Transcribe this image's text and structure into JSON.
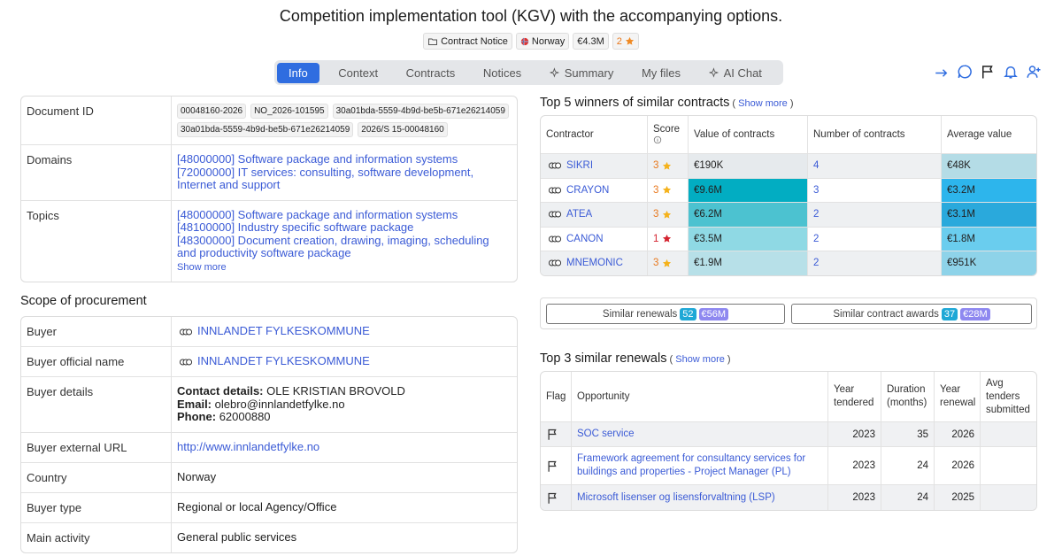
{
  "header": {
    "title": "Competition implementation tool (KGV) with the accompanying options.",
    "badges": {
      "notice_type": "Contract Notice",
      "country": "Norway",
      "value": "€4.3M",
      "rating": 2
    }
  },
  "tabs": {
    "items": [
      "Info",
      "Context",
      "Contracts",
      "Notices",
      "Summary",
      "My files",
      "AI Chat"
    ],
    "active": 0
  },
  "document": {
    "rows": [
      {
        "label": "Document ID",
        "chips": [
          "00048160-2026",
          "NO_2026-101595",
          "30a01bda-5559-4b9d-be5b-671e26214059",
          "30a01bda-5559-4b9d-be5b-671e26214059",
          "2026/S 15-00048160"
        ]
      },
      {
        "label": "Domains",
        "links": [
          "[48000000] Software package and information systems",
          "[72000000] IT services: consulting, software development, Internet and support"
        ]
      },
      {
        "label": "Topics",
        "links": [
          "[48000000] Software package and information systems",
          "[48100000] Industry specific software package",
          "[48300000] Document creation, drawing, imaging, scheduling and productivity software package"
        ],
        "more": "Show more"
      }
    ]
  },
  "scope": {
    "title": "Scope of procurement",
    "rows": [
      {
        "label": "Buyer",
        "link": "INNLANDET FYLKESKOMMUNE"
      },
      {
        "label": "Buyer official name",
        "link": "INNLANDET FYLKESKOMMUNE"
      },
      {
        "label": "Buyer details",
        "contact": [
          {
            "key": "Contact details:",
            "value": "OLE KRISTIAN BROVOLD"
          },
          {
            "key": "Email:",
            "value": "olebro@innlandetfylke.no"
          },
          {
            "key": "Phone:",
            "value": "62000880"
          }
        ]
      },
      {
        "label": "Buyer external URL",
        "url": "http://www.innlandetfylke.no"
      },
      {
        "label": "Country",
        "text": "Norway"
      },
      {
        "label": "Buyer type",
        "text": "Regional or local Agency/Office"
      },
      {
        "label": "Main activity",
        "text": "General public services"
      }
    ]
  },
  "winners": {
    "title": "Top 5 winners of similar contracts",
    "more": "Show more",
    "columns": [
      "Contractor",
      "Score",
      "Value of contracts",
      "Number of contracts",
      "Average value"
    ],
    "rows": [
      {
        "contractor": "SIKRI",
        "score": 3,
        "value": "€190K",
        "count": 4,
        "average": "€48K",
        "value_color": "#e6eaed",
        "average_color": "#b4dce6"
      },
      {
        "contractor": "CRAYON",
        "score": 3,
        "value": "€9.6M",
        "count": 3,
        "average": "€3.2M",
        "value_color": "#02adc2",
        "average_color": "#2db5ec"
      },
      {
        "contractor": "ATEA",
        "score": 3,
        "value": "€6.2M",
        "count": 2,
        "average": "€3.1M",
        "value_color": "#4cc2d0",
        "average_color": "#2aa9dc"
      },
      {
        "contractor": "CANON",
        "score": 1,
        "value": "€3.5M",
        "count": 2,
        "average": "€1.8M",
        "value_color": "#8fd9e4",
        "average_color": "#6acdee"
      },
      {
        "contractor": "MNEMONIC",
        "score": 3,
        "value": "€1.9M",
        "count": 2,
        "average": "€951K",
        "value_color": "#b7e0e8",
        "average_color": "#8ed3e9"
      }
    ]
  },
  "similar": {
    "renewals": {
      "label": "Similar renewals",
      "count": 52,
      "value": "€56M"
    },
    "awards": {
      "label": "Similar contract awards",
      "count": 37,
      "value": "€28M"
    }
  },
  "renewals": {
    "title": "Top 3 similar renewals",
    "more": "Show more",
    "columns": [
      "Flag",
      "Opportunity",
      "Year tendered",
      "Duration (months)",
      "Year renewal",
      "Avg tenders submitted"
    ],
    "rows": [
      {
        "opportunity": "SOC service",
        "year_tendered": 2023,
        "duration": 35,
        "year_renewal": 2026
      },
      {
        "opportunity": "Framework agreement for consultancy services for buildings and properties - Project Manager (PL)",
        "year_tendered": 2023,
        "duration": 24,
        "year_renewal": 2026
      },
      {
        "opportunity": "Microsoft lisenser og lisensforvaltning (LSP)",
        "year_tendered": 2023,
        "duration": 24,
        "year_renewal": 2025
      }
    ]
  }
}
